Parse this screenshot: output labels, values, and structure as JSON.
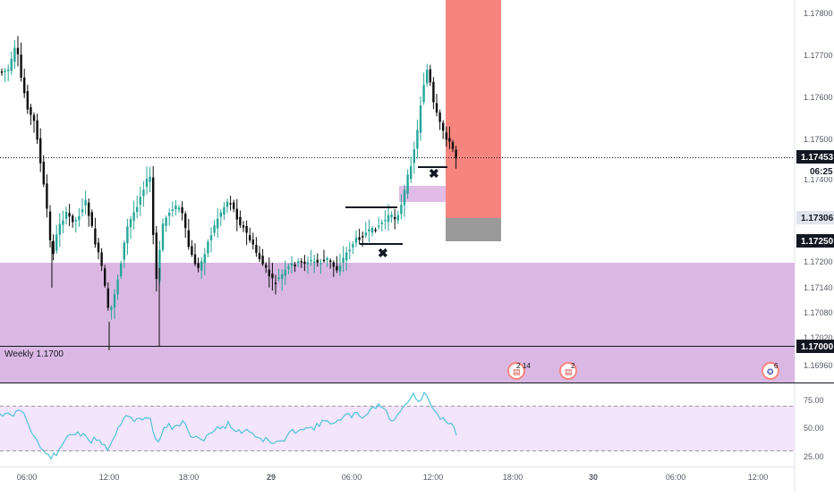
{
  "chart_data": [
    {
      "type": "candlestick",
      "symbol_context": "EURUSD-style price chart, 15m candles",
      "x_ticks": [
        "06:00",
        "12:00",
        "18:00",
        "29",
        "06:00",
        "12:00",
        "18:00",
        "30",
        "06:00",
        "12:00"
      ],
      "y_ticks": [
        "1.17800",
        "1.17700",
        "1.17600",
        "1.17500",
        "1.17400",
        "1.17200",
        "1.17140",
        "1.17080",
        "1.17020",
        "1.16960"
      ],
      "ylim": [
        1.1692,
        1.1782
      ],
      "price_labels": [
        {
          "value": "1.17453",
          "kind": "current-price"
        },
        {
          "value": "06:25",
          "kind": "countdown"
        },
        {
          "value": "1.17306",
          "kind": "target"
        },
        {
          "value": "1.17250",
          "kind": "stop"
        },
        {
          "value": "1.17000",
          "kind": "weekly-level"
        }
      ],
      "zone_label": "Weekly 1.1700",
      "demand_zone": [
        1.1692,
        1.172
      ],
      "current_price": 1.17453,
      "weekly_level": 1.17,
      "event_badges": [
        "2",
        "14",
        "2",
        "6"
      ],
      "colors": {
        "up": "#26a69a",
        "down": "#0d0d0d",
        "zone": "#dbb8e3",
        "small_zone": "#e1bce6",
        "risk": "#f7857f",
        "reward": "#9a9a9a",
        "dark_label": "#131722"
      }
    },
    {
      "type": "line",
      "indicator": "RSI",
      "y_ticks": [
        "75.00",
        "50.00",
        "25.00"
      ],
      "ylim": [
        15,
        90
      ],
      "band": [
        30,
        70
      ],
      "line_color": "#4fc3d9",
      "band_color": "#f3e5fb"
    }
  ]
}
